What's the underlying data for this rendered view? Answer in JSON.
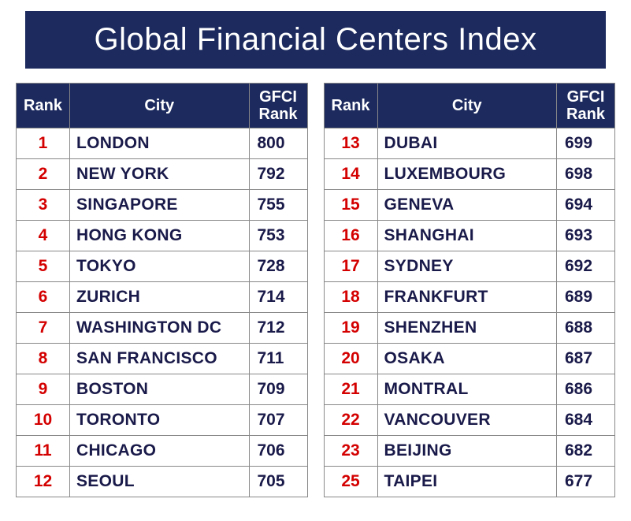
{
  "title": "Global Financial Centers Index",
  "colors": {
    "header_bg": "#1c2a5e",
    "header_text": "#ffffff",
    "rank_text": "#d40000",
    "cell_text": "#1a1a4a",
    "border": "#888888",
    "page_bg": "#ffffff"
  },
  "typography": {
    "title_fontsize": 40,
    "header_fontsize": 20,
    "cell_fontsize": 21,
    "font_family": "Arial",
    "cell_weight": "bold"
  },
  "columns": {
    "rank": "Rank",
    "city": "City",
    "gfci": "GFCI Rank"
  },
  "left_rows": [
    {
      "rank": "1",
      "city": "LONDON",
      "gfci": "800"
    },
    {
      "rank": "2",
      "city": "NEW YORK",
      "gfci": "792"
    },
    {
      "rank": "3",
      "city": "SINGAPORE",
      "gfci": "755"
    },
    {
      "rank": "4",
      "city": "HONG KONG",
      "gfci": "753"
    },
    {
      "rank": "5",
      "city": "TOKYO",
      "gfci": "728"
    },
    {
      "rank": "6",
      "city": "ZURICH",
      "gfci": "714"
    },
    {
      "rank": "7",
      "city": "WASHINGTON DC",
      "gfci": "712"
    },
    {
      "rank": "8",
      "city": "SAN FRANCISCO",
      "gfci": "711"
    },
    {
      "rank": "9",
      "city": "BOSTON",
      "gfci": "709"
    },
    {
      "rank": "10",
      "city": "TORONTO",
      "gfci": "707"
    },
    {
      "rank": "11",
      "city": "CHICAGO",
      "gfci": "706"
    },
    {
      "rank": "12",
      "city": "SEOUL",
      "gfci": "705"
    }
  ],
  "right_rows": [
    {
      "rank": "13",
      "city": "DUBAI",
      "gfci": "699"
    },
    {
      "rank": "14",
      "city": "LUXEMBOURG",
      "gfci": "698"
    },
    {
      "rank": "15",
      "city": "GENEVA",
      "gfci": "694"
    },
    {
      "rank": "16",
      "city": "SHANGHAI",
      "gfci": "693"
    },
    {
      "rank": "17",
      "city": "SYDNEY",
      "gfci": "692"
    },
    {
      "rank": "18",
      "city": "FRANKFURT",
      "gfci": "689"
    },
    {
      "rank": "19",
      "city": "SHENZHEN",
      "gfci": "688"
    },
    {
      "rank": "20",
      "city": "OSAKA",
      "gfci": "687"
    },
    {
      "rank": "21",
      "city": "MONTRAL",
      "gfci": "686"
    },
    {
      "rank": "22",
      "city": "VANCOUVER",
      "gfci": "684"
    },
    {
      "rank": "23",
      "city": "BEIJING",
      "gfci": "682"
    },
    {
      "rank": "25",
      "city": "TAIPEI",
      "gfci": "677"
    }
  ]
}
